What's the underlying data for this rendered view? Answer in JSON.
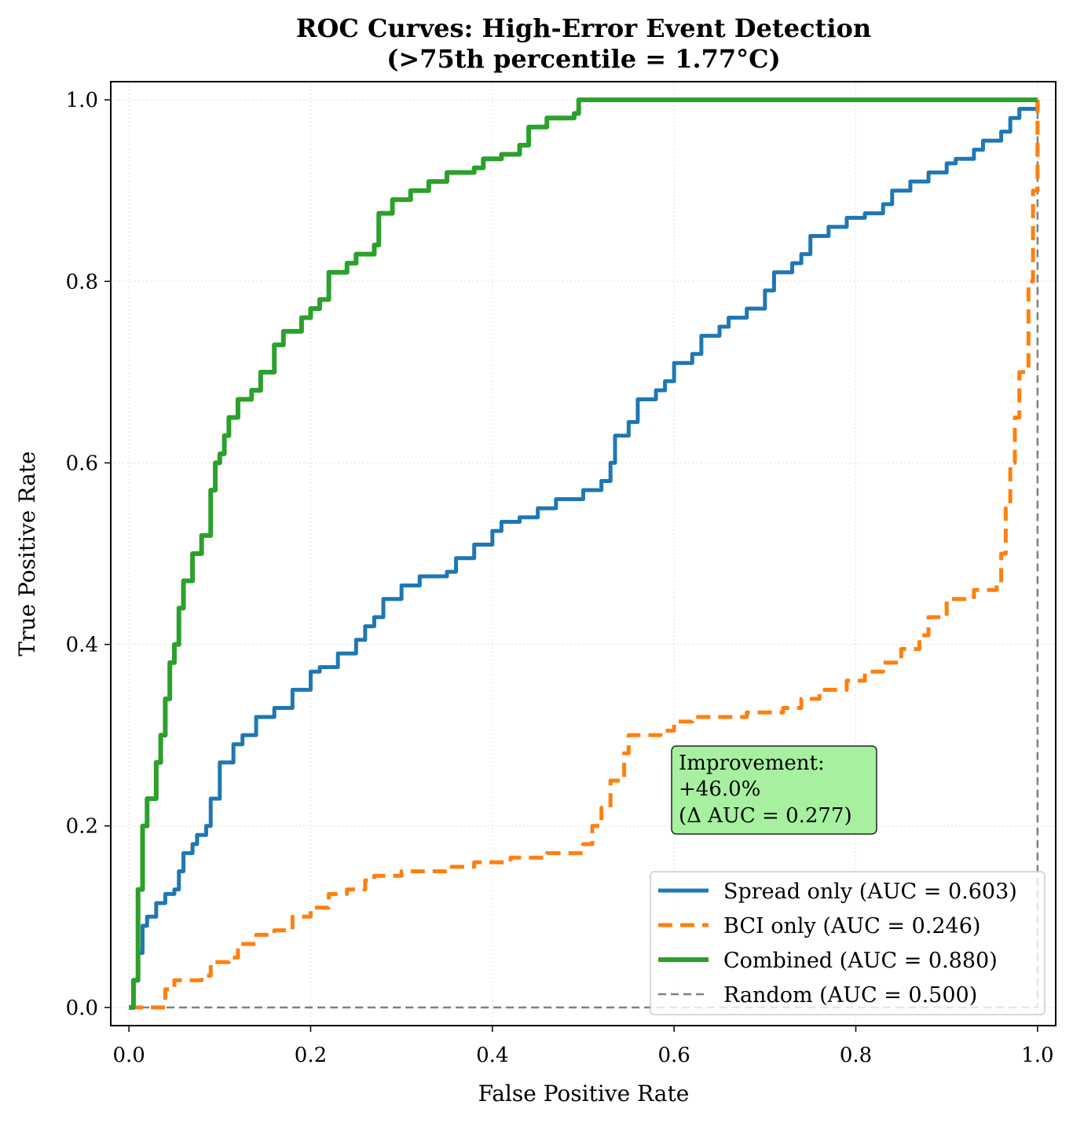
{
  "chart_data": {
    "type": "line",
    "title": [
      "ROC Curves: High-Error Event Detection",
      "(>75th percentile = 1.77°C)"
    ],
    "xlabel": "False Positive Rate",
    "ylabel": "True Positive Rate",
    "xlim": [
      -0.02,
      1.02
    ],
    "ylim": [
      -0.02,
      1.02
    ],
    "xticks": [
      "0.0",
      "0.2",
      "0.4",
      "0.6",
      "0.8",
      "1.0"
    ],
    "yticks": [
      "0.0",
      "0.2",
      "0.4",
      "0.6",
      "0.8",
      "1.0"
    ],
    "grid": true,
    "legend_placement": "lower-right",
    "annotation": [
      "Improvement:",
      "+46.0%",
      "(Δ AUC = 0.277)"
    ],
    "annotation_color": "#a6f0a0",
    "series": [
      {
        "name": "Spread only (AUC = 0.603)",
        "color": "#1f77b4",
        "style": "solid",
        "x": [
          0,
          0.005,
          0.01,
          0.015,
          0.02,
          0.03,
          0.04,
          0.05,
          0.055,
          0.06,
          0.07,
          0.075,
          0.085,
          0.09,
          0.1,
          0.1,
          0.11,
          0.115,
          0.125,
          0.14,
          0.16,
          0.18,
          0.2,
          0.21,
          0.23,
          0.25,
          0.26,
          0.27,
          0.28,
          0.3,
          0.32,
          0.35,
          0.36,
          0.38,
          0.4,
          0.41,
          0.43,
          0.45,
          0.47,
          0.48,
          0.5,
          0.52,
          0.53,
          0.535,
          0.55,
          0.56,
          0.58,
          0.59,
          0.6,
          0.62,
          0.63,
          0.65,
          0.66,
          0.68,
          0.7,
          0.71,
          0.73,
          0.74,
          0.75,
          0.77,
          0.79,
          0.81,
          0.83,
          0.84,
          0.86,
          0.88,
          0.9,
          0.91,
          0.93,
          0.94,
          0.96,
          0.97,
          0.98,
          1.0
        ],
        "y": [
          0,
          0.03,
          0.06,
          0.09,
          0.1,
          0.115,
          0.125,
          0.13,
          0.15,
          0.17,
          0.18,
          0.19,
          0.2,
          0.23,
          0.235,
          0.27,
          0.27,
          0.29,
          0.3,
          0.32,
          0.33,
          0.35,
          0.37,
          0.375,
          0.39,
          0.405,
          0.42,
          0.43,
          0.45,
          0.465,
          0.475,
          0.48,
          0.495,
          0.51,
          0.525,
          0.535,
          0.54,
          0.55,
          0.56,
          0.56,
          0.57,
          0.58,
          0.6,
          0.63,
          0.645,
          0.67,
          0.68,
          0.69,
          0.71,
          0.72,
          0.74,
          0.75,
          0.76,
          0.77,
          0.79,
          0.81,
          0.82,
          0.83,
          0.85,
          0.86,
          0.87,
          0.875,
          0.885,
          0.9,
          0.91,
          0.92,
          0.93,
          0.935,
          0.945,
          0.955,
          0.965,
          0.98,
          0.99,
          1.0
        ]
      },
      {
        "name": "BCI only (AUC = 0.246)",
        "color": "#ff7f0e",
        "style": "dashed",
        "x": [
          0,
          0.02,
          0.04,
          0.05,
          0.08,
          0.09,
          0.11,
          0.12,
          0.14,
          0.16,
          0.18,
          0.2,
          0.22,
          0.24,
          0.26,
          0.27,
          0.3,
          0.35,
          0.38,
          0.42,
          0.46,
          0.5,
          0.51,
          0.52,
          0.53,
          0.545,
          0.55,
          0.585,
          0.6,
          0.62,
          0.68,
          0.72,
          0.74,
          0.76,
          0.79,
          0.81,
          0.83,
          0.85,
          0.87,
          0.88,
          0.9,
          0.93,
          0.955,
          0.96,
          0.965,
          0.97,
          0.975,
          0.98,
          0.99,
          0.995,
          1.0
        ],
        "y": [
          0,
          0,
          0.02,
          0.03,
          0.035,
          0.05,
          0.055,
          0.07,
          0.08,
          0.085,
          0.1,
          0.11,
          0.125,
          0.13,
          0.14,
          0.145,
          0.15,
          0.155,
          0.16,
          0.165,
          0.17,
          0.18,
          0.2,
          0.22,
          0.25,
          0.28,
          0.3,
          0.305,
          0.315,
          0.32,
          0.325,
          0.33,
          0.34,
          0.35,
          0.36,
          0.37,
          0.38,
          0.395,
          0.41,
          0.43,
          0.45,
          0.46,
          0.465,
          0.5,
          0.55,
          0.6,
          0.65,
          0.7,
          0.8,
          0.9,
          1.0
        ]
      },
      {
        "name": "Combined (AUC = 0.880)",
        "color": "#2ca02c",
        "style": "solid",
        "x": [
          0,
          0.005,
          0.01,
          0.015,
          0.015,
          0.02,
          0.03,
          0.035,
          0.04,
          0.045,
          0.05,
          0.055,
          0.06,
          0.07,
          0.08,
          0.09,
          0.09,
          0.095,
          0.1,
          0.105,
          0.11,
          0.12,
          0.135,
          0.145,
          0.16,
          0.17,
          0.19,
          0.2,
          0.21,
          0.22,
          0.24,
          0.25,
          0.27,
          0.275,
          0.29,
          0.31,
          0.33,
          0.35,
          0.38,
          0.39,
          0.41,
          0.43,
          0.44,
          0.46,
          0.49,
          0.495,
          1.0
        ],
        "y": [
          0,
          0.03,
          0.13,
          0.15,
          0.2,
          0.23,
          0.27,
          0.3,
          0.34,
          0.38,
          0.4,
          0.44,
          0.47,
          0.5,
          0.52,
          0.53,
          0.57,
          0.6,
          0.61,
          0.63,
          0.65,
          0.67,
          0.68,
          0.7,
          0.73,
          0.745,
          0.76,
          0.77,
          0.78,
          0.81,
          0.82,
          0.83,
          0.84,
          0.875,
          0.89,
          0.9,
          0.91,
          0.92,
          0.925,
          0.935,
          0.94,
          0.95,
          0.97,
          0.98,
          0.985,
          1.0,
          1.0
        ]
      },
      {
        "name": "Random (AUC = 0.500)",
        "color": "#808080",
        "style": "dashed",
        "x": [
          0,
          1
        ],
        "y": [
          0,
          1
        ]
      }
    ]
  }
}
